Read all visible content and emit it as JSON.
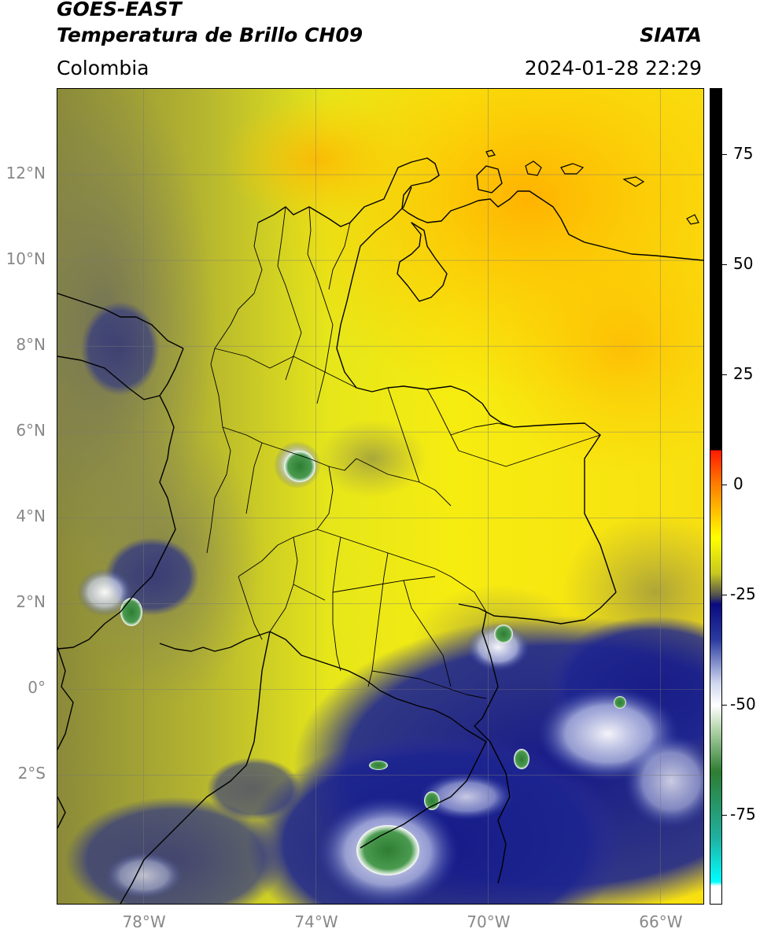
{
  "header": {
    "satellite": "GOES-EAST",
    "product": "Temperatura de Brillo CH09",
    "org": "SIATA",
    "region": "Colombia",
    "datetime": "2024-01-28 22:29"
  },
  "map": {
    "lon_range": [
      -80.0,
      -65.0
    ],
    "lat_range": [
      -5.0,
      14.0
    ],
    "lon_ticks": [
      {
        "value": -78,
        "label": "78°W"
      },
      {
        "value": -74,
        "label": "74°W"
      },
      {
        "value": -70,
        "label": "70°W"
      },
      {
        "value": -66,
        "label": "66°W"
      }
    ],
    "lat_ticks": [
      {
        "value": 12,
        "label": "12°N"
      },
      {
        "value": 10,
        "label": "10°N"
      },
      {
        "value": 8,
        "label": "8°N"
      },
      {
        "value": 6,
        "label": "6°N"
      },
      {
        "value": 4,
        "label": "4°N"
      },
      {
        "value": 2,
        "label": "2°N"
      },
      {
        "value": 0,
        "label": "0°"
      },
      {
        "value": -2,
        "label": "2°S"
      }
    ],
    "gridlines": true
  },
  "colorbar": {
    "range": [
      -95,
      90
    ],
    "stops": [
      {
        "value": 90,
        "color": "#000000"
      },
      {
        "value": 8,
        "color": "#000000"
      },
      {
        "value": 7.9,
        "color": "#ff1a00"
      },
      {
        "value": 0,
        "color": "#ff8000"
      },
      {
        "value": -12,
        "color": "#ffff00"
      },
      {
        "value": -20,
        "color": "#c8c820"
      },
      {
        "value": -25,
        "color": "#505050"
      },
      {
        "value": -27,
        "color": "#0a0a80"
      },
      {
        "value": -35,
        "color": "#2a3aa0"
      },
      {
        "value": -45,
        "color": "#d0d8f0"
      },
      {
        "value": -50,
        "color": "#ffffff"
      },
      {
        "value": -55,
        "color": "#b8d8b0"
      },
      {
        "value": -65,
        "color": "#2e7d32"
      },
      {
        "value": -80,
        "color": "#20b0a0"
      },
      {
        "value": -90,
        "color": "#00ffff"
      },
      {
        "value": -91,
        "color": "#ffffff"
      },
      {
        "value": -95,
        "color": "#ffffff"
      }
    ],
    "ticks": [
      {
        "value": 75,
        "label": "75"
      },
      {
        "value": 50,
        "label": "50"
      },
      {
        "value": 25,
        "label": "25"
      },
      {
        "value": 0,
        "label": "0"
      },
      {
        "value": -25,
        "label": "-25"
      },
      {
        "value": -50,
        "label": "-50"
      },
      {
        "value": -75,
        "label": "-75"
      }
    ]
  }
}
